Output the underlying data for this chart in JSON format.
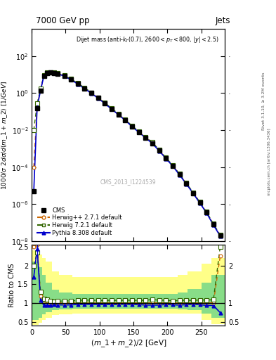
{
  "title_top": "7000 GeV pp",
  "title_right": "Jets",
  "annotation": "Dijet mass (anti-k_{T}(0.7), 2600<p_{T}<800, |y|<2.5)",
  "watermark": "CMS_2013_I1224539",
  "ylabel_main": "1000/\\sigma 2d\\sigma/d(m_1 + m_2) [1/GeV]",
  "ylabel_ratio": "Ratio to CMS",
  "xlabel": "(m_1 + m_2) / 2 [GeV]",
  "xlim": [
    0,
    285
  ],
  "ylim_main": [
    1e-08,
    3000.0
  ],
  "ylim_ratio": [
    0.4,
    2.55
  ],
  "x_data": [
    3,
    8,
    13,
    18,
    23,
    28,
    33,
    38,
    48,
    58,
    68,
    78,
    88,
    98,
    108,
    118,
    128,
    138,
    148,
    158,
    168,
    178,
    188,
    198,
    208,
    218,
    228,
    238,
    248,
    258,
    268,
    278
  ],
  "y_cms": [
    5e-06,
    0.15,
    1.3,
    8.5,
    12,
    13,
    12.5,
    11.5,
    8.5,
    5.5,
    3.2,
    1.8,
    1.0,
    0.55,
    0.28,
    0.14,
    0.07,
    0.035,
    0.016,
    0.008,
    0.004,
    0.002,
    0.0008,
    0.0003,
    0.00012,
    4e-05,
    1.3e-05,
    4e-06,
    1.2e-06,
    3.5e-07,
    8e-08,
    2e-08
  ],
  "y_mc1": [
    0.0001,
    0.22,
    1.55,
    9.2,
    12.7,
    13.1,
    12.6,
    11.6,
    8.6,
    5.6,
    3.25,
    1.85,
    1.02,
    0.56,
    0.285,
    0.142,
    0.071,
    0.0355,
    0.0162,
    0.0081,
    0.00404,
    0.00202,
    0.000808,
    0.000303,
    0.0001212,
    4.04e-05,
    1.313e-05,
    4.04e-06,
    1.212e-06,
    3.535e-07,
    8.08e-08,
    2.02e-08
  ],
  "y_mc2": [
    0.01,
    0.28,
    1.7,
    9.5,
    13.2,
    13.7,
    13.1,
    12.1,
    9.0,
    5.85,
    3.43,
    1.95,
    1.08,
    0.59,
    0.3,
    0.151,
    0.075,
    0.0378,
    0.0172,
    0.0086,
    0.0043,
    0.0022,
    0.00086,
    0.000325,
    0.000127,
    4.3e-05,
    1.4e-05,
    4.3e-06,
    1.3e-06,
    3.8e-07,
    8.7e-08,
    2.2e-08
  ],
  "y_mc3": [
    5e-06,
    0.18,
    1.4,
    8.8,
    12.2,
    12.8,
    12.3,
    11.3,
    8.3,
    5.3,
    3.1,
    1.75,
    0.97,
    0.53,
    0.27,
    0.135,
    0.068,
    0.034,
    0.0155,
    0.0077,
    0.0038,
    0.0019,
    0.00076,
    0.00029,
    0.000115,
    3.8e-05,
    1.25e-05,
    3.9e-06,
    1.15e-06,
    3.3e-07,
    7.5e-08,
    1.9e-08
  ],
  "ratio1": [
    2.5,
    2.55,
    1.19,
    1.08,
    1.06,
    1.01,
    1.01,
    1.01,
    1.01,
    1.02,
    1.02,
    1.03,
    1.02,
    1.02,
    1.02,
    1.01,
    1.01,
    1.01,
    1.01,
    1.01,
    1.01,
    1.01,
    1.01,
    1.01,
    1.01,
    1.01,
    1.01,
    1.01,
    1.01,
    1.01,
    1.01,
    2.25
  ],
  "ratio2": [
    2.0,
    2.35,
    1.31,
    1.12,
    1.1,
    1.054,
    1.048,
    1.052,
    1.059,
    1.064,
    1.072,
    1.083,
    1.08,
    1.073,
    1.071,
    1.079,
    1.071,
    1.08,
    1.075,
    1.075,
    1.075,
    1.1,
    1.075,
    1.083,
    1.058,
    1.075,
    1.077,
    1.075,
    1.083,
    1.086,
    1.088,
    2.5
  ],
  "ratio3": [
    1.7,
    2.45,
    1.08,
    0.94,
    0.94,
    0.944,
    0.96,
    0.957,
    0.953,
    0.955,
    0.969,
    0.972,
    0.97,
    0.964,
    0.964,
    0.964,
    0.971,
    0.971,
    0.969,
    0.963,
    0.95,
    0.95,
    0.95,
    0.967,
    0.958,
    0.95,
    0.962,
    0.975,
    0.958,
    0.943,
    0.938,
    0.75
  ],
  "x_band": [
    0,
    5,
    10,
    15,
    20,
    30,
    40,
    60,
    80,
    100,
    120,
    140,
    160,
    180,
    200,
    215,
    230,
    250,
    265,
    285
  ],
  "yellow_lo": [
    0.42,
    0.42,
    0.48,
    0.56,
    0.62,
    0.68,
    0.7,
    0.72,
    0.72,
    0.72,
    0.72,
    0.72,
    0.72,
    0.72,
    0.72,
    0.72,
    0.72,
    0.55,
    0.45,
    0.42
  ],
  "yellow_hi": [
    2.4,
    2.4,
    2.3,
    2.2,
    2.1,
    1.85,
    1.75,
    1.7,
    1.7,
    1.7,
    1.7,
    1.7,
    1.7,
    1.7,
    1.7,
    1.75,
    1.85,
    2.05,
    2.2,
    2.4
  ],
  "green_lo": [
    0.55,
    0.55,
    0.62,
    0.7,
    0.77,
    0.82,
    0.84,
    0.85,
    0.85,
    0.85,
    0.85,
    0.85,
    0.85,
    0.85,
    0.85,
    0.84,
    0.82,
    0.72,
    0.62,
    0.55
  ],
  "green_hi": [
    2.1,
    2.1,
    1.95,
    1.75,
    1.55,
    1.35,
    1.28,
    1.25,
    1.25,
    1.25,
    1.25,
    1.25,
    1.25,
    1.25,
    1.25,
    1.28,
    1.38,
    1.55,
    1.75,
    2.1
  ],
  "color_cms": "#000000",
  "color_mc1": "#cc6600",
  "color_mc2": "#336600",
  "color_mc3": "#0000cc"
}
